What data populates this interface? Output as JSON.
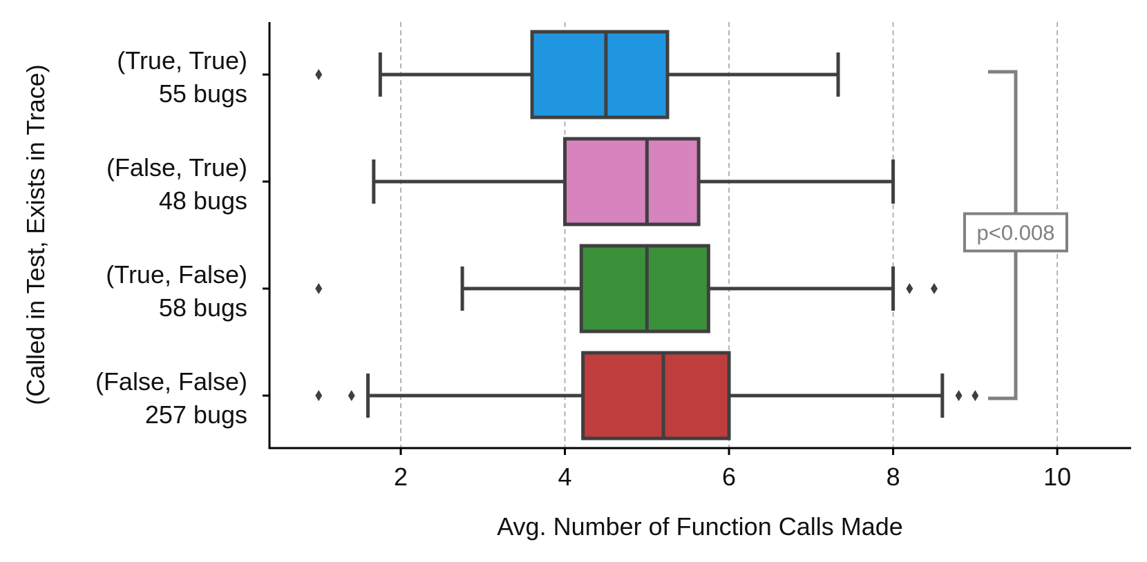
{
  "chart_data": {
    "type": "box",
    "title": "",
    "xlabel": "Avg. Number of Function Calls Made",
    "ylabel": "(Called in Test, Exists in Trace)",
    "xlim": [
      0.4,
      10.9
    ],
    "xticks": [
      2,
      4,
      6,
      8,
      10
    ],
    "grid": "vertical dashed at x ticks",
    "series": [
      {
        "label": [
          "(True, True)",
          "55 bugs"
        ],
        "color": "#2196e0",
        "whisker_low": 1.75,
        "q1": 3.6,
        "median": 4.5,
        "q3": 5.25,
        "whisker_high": 7.33,
        "fliers": [
          1.0
        ]
      },
      {
        "label": [
          "(False, True)",
          "48 bugs"
        ],
        "color": "#d683be",
        "whisker_low": 1.67,
        "q1": 4.0,
        "median": 5.0,
        "q3": 5.63,
        "whisker_high": 8.0,
        "fliers": []
      },
      {
        "label": [
          "(True, False)",
          "58 bugs"
        ],
        "color": "#3a913a",
        "whisker_low": 2.75,
        "q1": 4.2,
        "median": 5.0,
        "q3": 5.75,
        "whisker_high": 8.0,
        "fliers": [
          1.0,
          8.2,
          8.5
        ]
      },
      {
        "label": [
          "(False, False)",
          "257 bugs"
        ],
        "color": "#c03d3e",
        "whisker_low": 1.6,
        "q1": 4.22,
        "median": 5.2,
        "q3": 6.0,
        "whisker_high": 8.6,
        "fliers": [
          1.0,
          1.4,
          8.8,
          9.0
        ]
      }
    ],
    "annotation": {
      "text": "p<0.008",
      "between": [
        "(True, True)",
        "(False, False)"
      ],
      "color": "#808080"
    }
  }
}
